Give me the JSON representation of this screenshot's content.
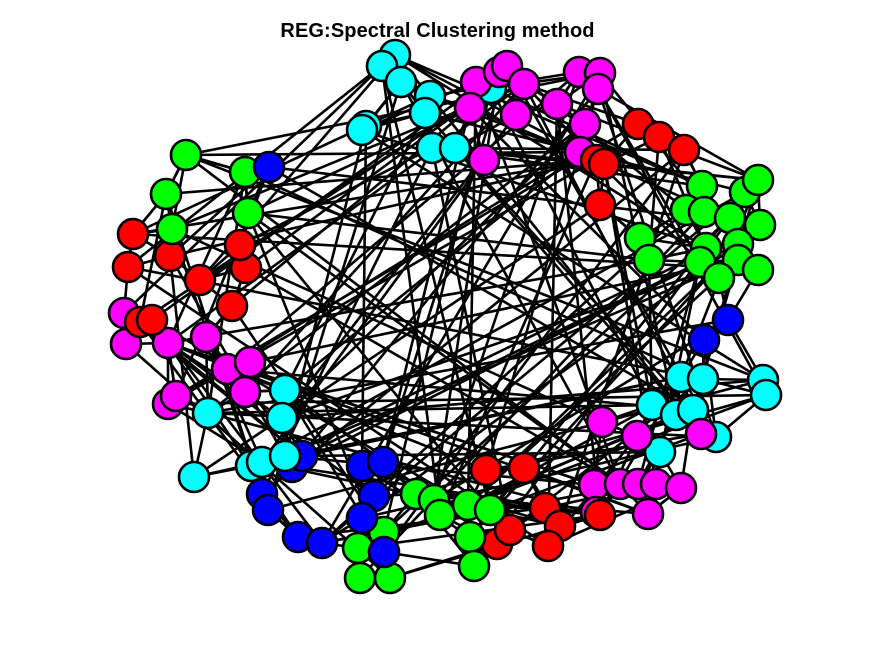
{
  "title": "REG:Spectral Clustering method",
  "colors": {
    "cyan": "#00ffff",
    "magenta": "#ff00ff",
    "red": "#ff0000",
    "green": "#00ff00",
    "blue": "#0000ff",
    "edge": "#000000",
    "outline": "#000000",
    "background": "#ffffff"
  }
}
